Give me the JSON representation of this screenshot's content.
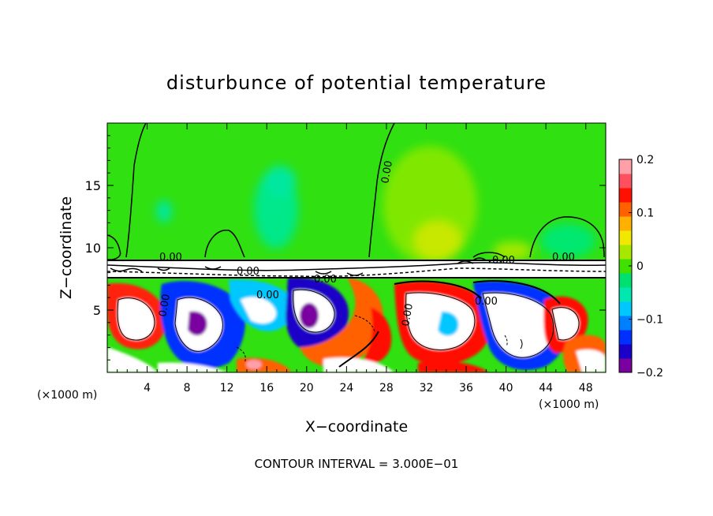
{
  "chart_data": {
    "type": "heatmap",
    "title": "disturbunce of potential temperature",
    "xlabel": "X−coordinate",
    "ylabel": "Z−coordinate",
    "x_unit_left": "(×1000 m)",
    "x_unit_right": "(×1000 m)",
    "xlim": [
      0,
      50
    ],
    "ylim": [
      0,
      20
    ],
    "x_ticks": [
      4,
      8,
      12,
      16,
      20,
      24,
      28,
      32,
      36,
      40,
      44,
      48
    ],
    "x_tick_labels": [
      "4",
      "8",
      "12",
      "16",
      "20",
      "24",
      "28",
      "32",
      "36",
      "40",
      "44",
      "48"
    ],
    "y_ticks": [
      5,
      10,
      15
    ],
    "y_tick_labels": [
      "5",
      "10",
      "15"
    ],
    "colorbar": {
      "range": [
        -0.2,
        0.2
      ],
      "ticks": [
        0.2,
        0.1,
        0,
        -0.1,
        -0.2
      ],
      "tick_labels": [
        "0.2",
        "0.1",
        "0",
        "−0.1",
        "−0.2"
      ],
      "colors": [
        "#7a00a0",
        "#1a00c8",
        "#0030ff",
        "#0080ff",
        "#00c8ff",
        "#00e8b0",
        "#00e070",
        "#40e000",
        "#a8e800",
        "#f0e800",
        "#ffb000",
        "#ff6000",
        "#ff1000",
        "#ff5060",
        "#ffa0a8"
      ]
    },
    "contour_labels": [
      "0.00",
      "0.00",
      "0.00",
      "0.00",
      "0.00",
      "0.00",
      "0.00",
      "0.00",
      "0.00",
      "0.00"
    ],
    "footer": "CONTOUR INTERVAL = 3.000E−01"
  }
}
